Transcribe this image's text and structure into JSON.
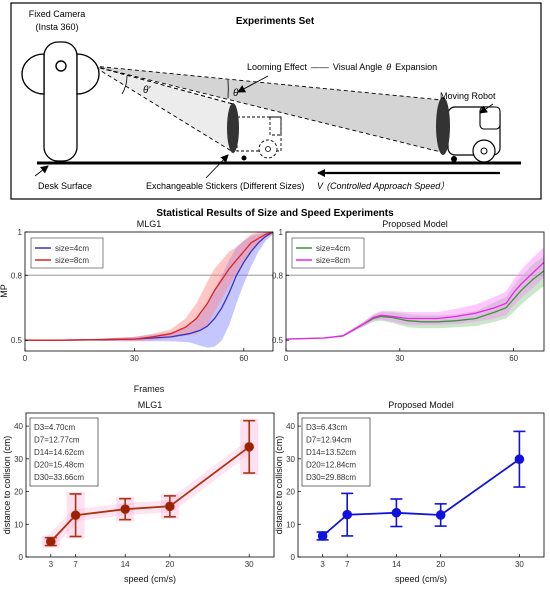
{
  "diagram": {
    "title": "Experiments Set",
    "camera_label_1": "Fixed Camera",
    "camera_label_2": "(Insta 360)",
    "looming_label": "Looming Effect",
    "visual_angle_label": "Visual Angle",
    "theta_symbol": "θ",
    "expansion_label": "Expansion",
    "theta_prime": "θ'",
    "theta": "θ",
    "robot_label": "Moving Robot",
    "desk_label": "Desk Surface",
    "stickers_label": "Exchangeable Stickers (Different Sizes)",
    "speed_symbol": "V",
    "speed_label": "(Controlled Approach Speed）"
  },
  "section_title": "Statistical Results of Size and Speed Experiments",
  "chart_data": [
    {
      "id": "mlg1-size",
      "type": "line",
      "title": "MLG1",
      "xlabel": "Frames",
      "ylabel": "MP",
      "xlim": [
        0,
        68
      ],
      "ylim": [
        0.45,
        1.0
      ],
      "xticks": [
        "0",
        "30",
        "60"
      ],
      "xtick_values": [
        0,
        30,
        60
      ],
      "yticks": [
        "0.5",
        "0.8",
        "1"
      ],
      "ytick_values": [
        0.5,
        0.8,
        1.0
      ],
      "reference_line": 0.8,
      "legend_position": "top-left",
      "series": [
        {
          "name": "size=4cm",
          "color": "#3333cc",
          "band_color": "#8080ff",
          "x": [
            0,
            10,
            20,
            30,
            35,
            40,
            45,
            48,
            50,
            52,
            54,
            56,
            58,
            60,
            62,
            64,
            66,
            68
          ],
          "y": [
            0.5,
            0.5,
            0.502,
            0.505,
            0.51,
            0.515,
            0.53,
            0.545,
            0.565,
            0.6,
            0.65,
            0.72,
            0.8,
            0.86,
            0.91,
            0.95,
            0.98,
            1.0
          ],
          "band": [
            0,
            0,
            0.005,
            0.01,
            0.015,
            0.02,
            0.04,
            0.07,
            0.1,
            0.13,
            0.15,
            0.15,
            0.13,
            0.1,
            0.07,
            0.04,
            0.02,
            0.01
          ]
        },
        {
          "name": "size=8cm",
          "color": "#dd2222",
          "band_color": "#ff8080",
          "x": [
            0,
            10,
            20,
            30,
            35,
            40,
            44,
            47,
            50,
            52,
            54,
            56,
            58,
            60,
            62,
            64,
            66,
            68
          ],
          "y": [
            0.5,
            0.5,
            0.502,
            0.505,
            0.515,
            0.53,
            0.56,
            0.6,
            0.67,
            0.73,
            0.78,
            0.83,
            0.87,
            0.91,
            0.95,
            0.97,
            0.99,
            1.0
          ],
          "band": [
            0,
            0,
            0.005,
            0.01,
            0.015,
            0.02,
            0.04,
            0.07,
            0.1,
            0.1,
            0.09,
            0.08,
            0.06,
            0.05,
            0.04,
            0.03,
            0.015,
            0.01
          ]
        }
      ]
    },
    {
      "id": "proposed-size",
      "type": "line",
      "title": "Proposed Model",
      "xlabel": "Frames",
      "ylabel": "",
      "xlim": [
        0,
        68
      ],
      "ylim": [
        0.45,
        1.0
      ],
      "xticks": [
        "0",
        "30",
        "60"
      ],
      "xtick_values": [
        0,
        30,
        60
      ],
      "yticks": [
        "0.5",
        "0.8",
        "1"
      ],
      "ytick_values": [
        0.5,
        0.8,
        1.0
      ],
      "reference_line": 0.8,
      "legend_position": "top-left",
      "series": [
        {
          "name": "size=4cm",
          "color": "#339933",
          "band_color": "#88cc88",
          "x": [
            0,
            10,
            15,
            20,
            23,
            25,
            28,
            32,
            36,
            40,
            45,
            50,
            55,
            58,
            60,
            62,
            65,
            68
          ],
          "y": [
            0.505,
            0.51,
            0.52,
            0.57,
            0.6,
            0.61,
            0.605,
            0.59,
            0.585,
            0.585,
            0.59,
            0.6,
            0.63,
            0.65,
            0.69,
            0.73,
            0.78,
            0.82
          ],
          "band": [
            0,
            0,
            0.005,
            0.01,
            0.015,
            0.02,
            0.025,
            0.03,
            0.03,
            0.03,
            0.03,
            0.035,
            0.045,
            0.05,
            0.06,
            0.065,
            0.07,
            0.07
          ]
        },
        {
          "name": "size=8cm",
          "color": "#ee22ee",
          "band_color": "#ff88ff",
          "x": [
            0,
            10,
            15,
            20,
            23,
            25,
            28,
            32,
            36,
            40,
            45,
            50,
            55,
            58,
            60,
            62,
            65,
            68
          ],
          "y": [
            0.505,
            0.51,
            0.52,
            0.57,
            0.605,
            0.615,
            0.61,
            0.6,
            0.6,
            0.6,
            0.61,
            0.625,
            0.65,
            0.67,
            0.72,
            0.76,
            0.81,
            0.86
          ],
          "band": [
            0,
            0,
            0.005,
            0.01,
            0.015,
            0.02,
            0.025,
            0.03,
            0.03,
            0.03,
            0.035,
            0.04,
            0.05,
            0.055,
            0.06,
            0.065,
            0.07,
            0.07
          ]
        }
      ]
    },
    {
      "id": "mlg1-speed",
      "type": "line",
      "title": "MLG1",
      "xlabel": "speed (cm/s)",
      "ylabel": "distance to collision (cm)",
      "categories": [
        "3",
        "7",
        "14",
        "20",
        "30"
      ],
      "ylim": [
        0,
        44
      ],
      "yticks": [
        "0",
        "10",
        "20",
        "30",
        "40"
      ],
      "ytick_values": [
        0,
        10,
        20,
        30,
        40
      ],
      "color": "#aa3311",
      "marker_color": "#992200",
      "band_color": "#ffbbdd",
      "values": [
        4.7,
        12.77,
        14.62,
        15.48,
        33.66
      ],
      "err": [
        1.2,
        6.5,
        3.2,
        3.2,
        8.0
      ],
      "annotation": [
        "D3=4.70cm",
        "D7=12.77cm",
        "D14=14.62cm",
        "D20=15.48cm",
        "D30=33.66cm"
      ]
    },
    {
      "id": "proposed-speed",
      "type": "line",
      "title": "Proposed Model",
      "xlabel": "speed (cm/s)",
      "ylabel": "distance to collision (cm)",
      "categories": [
        "3",
        "7",
        "14",
        "20",
        "30"
      ],
      "ylim": [
        0,
        44
      ],
      "yticks": [
        "0",
        "10",
        "20",
        "30",
        "40"
      ],
      "ytick_values": [
        0,
        10,
        20,
        30,
        40
      ],
      "color": "#1111dd",
      "marker_color": "#1111dd",
      "band_color": "",
      "values": [
        6.43,
        12.94,
        13.52,
        12.84,
        29.88
      ],
      "err": [
        1.2,
        6.5,
        4.2,
        3.4,
        8.5
      ],
      "annotation": [
        "D3=6.43cm",
        "D7=12.94cm",
        "D14=13.52cm",
        "D20=12.84cm",
        "D30=29.88cm"
      ]
    }
  ]
}
